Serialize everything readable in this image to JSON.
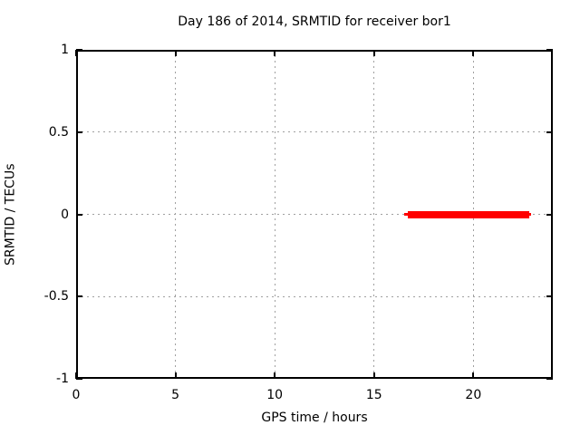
{
  "figure": {
    "background": "#ffffff",
    "text_color": "#000000"
  },
  "chart_data": {
    "type": "line",
    "title": "Day 186 of 2014, SRMTID for receiver bor1",
    "xlabel": "GPS time / hours",
    "ylabel": "SRMTID / TECUs",
    "xlim": [
      0,
      24
    ],
    "ylim": [
      -1,
      1
    ],
    "xticks": [
      {
        "value": 0,
        "label": "0"
      },
      {
        "value": 5,
        "label": "5"
      },
      {
        "value": 10,
        "label": "10"
      },
      {
        "value": 15,
        "label": "15"
      },
      {
        "value": 20,
        "label": "20"
      }
    ],
    "yticks": [
      {
        "value": -1,
        "label": "-1"
      },
      {
        "value": -0.5,
        "label": "-0.5"
      },
      {
        "value": 0,
        "label": "0"
      },
      {
        "value": 0.5,
        "label": "0.5"
      },
      {
        "value": 1,
        "label": "1"
      }
    ],
    "grid": "dashed",
    "grid_color": "#a0a0a0",
    "border_color": "#000000",
    "legend_position": "none",
    "series": [
      {
        "name": "SRMTID",
        "color": "#ff0000",
        "y": 0,
        "x_start": 16.5,
        "x_end": 22.9,
        "segments": [
          {
            "x1": 16.5,
            "x2": 16.7,
            "thickness_px": 3
          },
          {
            "x1": 16.7,
            "x2": 22.8,
            "thickness_px": 8
          },
          {
            "x1": 22.8,
            "x2": 22.9,
            "thickness_px": 3
          }
        ]
      }
    ]
  }
}
